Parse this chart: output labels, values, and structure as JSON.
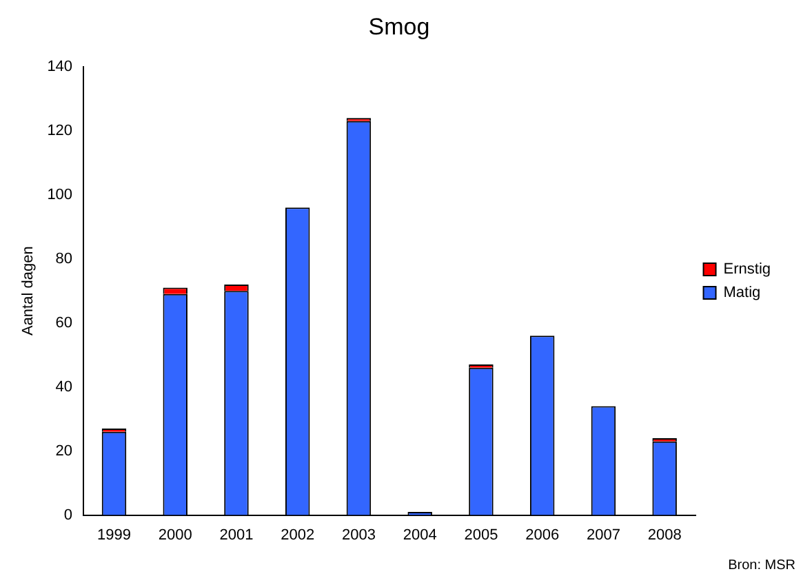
{
  "chart_data": {
    "type": "bar",
    "title": "Smog",
    "ylabel": "Aantal dagen",
    "categories": [
      "1999",
      "2000",
      "2001",
      "2002",
      "2003",
      "2004",
      "2005",
      "2006",
      "2007",
      "2008"
    ],
    "series": [
      {
        "name": "Matig",
        "color": "#3366ff",
        "values": [
          26,
          69,
          70,
          96,
          123,
          1,
          46,
          56,
          34,
          23
        ]
      },
      {
        "name": "Ernstig",
        "color": "#ff0000",
        "values": [
          1,
          2,
          2,
          0,
          1,
          0,
          1,
          0,
          0,
          1
        ]
      }
    ],
    "stacked": true,
    "ylim": [
      0,
      140
    ],
    "yticks": [
      0,
      20,
      40,
      60,
      80,
      100,
      120,
      140
    ],
    "grid": false,
    "legend": "right",
    "annotations": [
      "Bron: MSR"
    ]
  }
}
